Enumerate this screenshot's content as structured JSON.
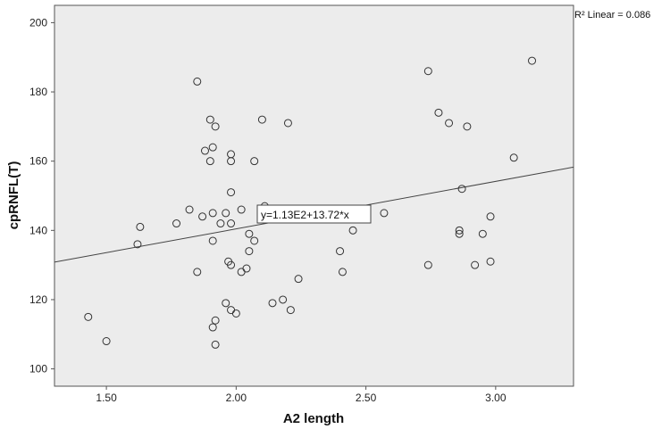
{
  "chart_data": {
    "type": "scatter",
    "xlabel": "A2 length",
    "ylabel": "cpRNFL(T)",
    "xlim": [
      1.3,
      3.3
    ],
    "ylim": [
      95,
      205
    ],
    "x_ticks": [
      "1.50",
      "2.00",
      "2.50",
      "3.00"
    ],
    "x_tick_values": [
      1.5,
      2.0,
      2.5,
      3.0
    ],
    "y_ticks": [
      "100",
      "120",
      "140",
      "160",
      "180",
      "200"
    ],
    "y_tick_values": [
      100,
      120,
      140,
      160,
      180,
      200
    ],
    "r2_label": "R² Linear = 0.086",
    "fit_equation": "y=1.13E2+13.72*x",
    "fit": {
      "intercept": 113,
      "slope": 13.72
    },
    "grid": false,
    "colors": {
      "plot_bg": "#ececec",
      "marker": "#333333",
      "line": "#444444"
    },
    "points": [
      [
        1.43,
        115
      ],
      [
        1.5,
        108
      ],
      [
        1.62,
        136
      ],
      [
        1.63,
        141
      ],
      [
        1.77,
        142
      ],
      [
        1.82,
        146
      ],
      [
        1.85,
        183
      ],
      [
        1.85,
        128
      ],
      [
        1.87,
        144
      ],
      [
        1.88,
        163
      ],
      [
        1.9,
        172
      ],
      [
        1.9,
        160
      ],
      [
        1.91,
        164
      ],
      [
        1.91,
        145
      ],
      [
        1.91,
        137
      ],
      [
        1.91,
        112
      ],
      [
        1.92,
        170
      ],
      [
        1.92,
        114
      ],
      [
        1.92,
        107
      ],
      [
        1.94,
        142
      ],
      [
        1.96,
        145
      ],
      [
        1.96,
        119
      ],
      [
        1.97,
        131
      ],
      [
        1.98,
        162
      ],
      [
        1.98,
        160
      ],
      [
        1.98,
        151
      ],
      [
        1.98,
        142
      ],
      [
        1.98,
        130
      ],
      [
        1.98,
        117
      ],
      [
        2.0,
        116
      ],
      [
        2.02,
        146
      ],
      [
        2.02,
        128
      ],
      [
        2.04,
        129
      ],
      [
        2.05,
        139
      ],
      [
        2.05,
        134
      ],
      [
        2.07,
        160
      ],
      [
        2.07,
        137
      ],
      [
        2.1,
        172
      ],
      [
        2.11,
        147
      ],
      [
        2.14,
        119
      ],
      [
        2.18,
        120
      ],
      [
        2.2,
        171
      ],
      [
        2.21,
        117
      ],
      [
        2.24,
        126
      ],
      [
        2.4,
        134
      ],
      [
        2.41,
        128
      ],
      [
        2.45,
        140
      ],
      [
        2.57,
        145
      ],
      [
        2.74,
        186
      ],
      [
        2.74,
        130
      ],
      [
        2.78,
        174
      ],
      [
        2.82,
        171
      ],
      [
        2.86,
        140
      ],
      [
        2.86,
        139
      ],
      [
        2.87,
        152
      ],
      [
        2.89,
        170
      ],
      [
        2.92,
        130
      ],
      [
        2.95,
        139
      ],
      [
        2.98,
        144
      ],
      [
        2.98,
        131
      ],
      [
        3.07,
        161
      ],
      [
        3.14,
        189
      ]
    ]
  }
}
